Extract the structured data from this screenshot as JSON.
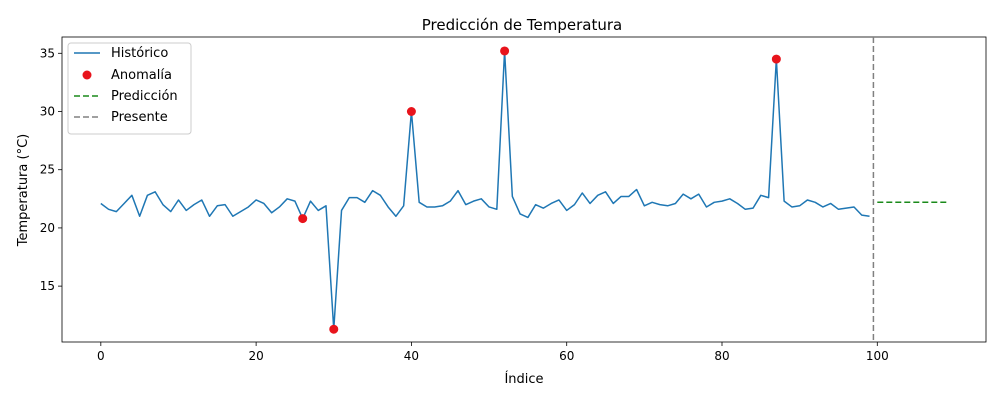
{
  "chart_data": {
    "type": "line",
    "title": "Predicción de Temperatura",
    "xlabel": "Índice",
    "ylabel": "Temperatura (°C)",
    "xlim": [
      -5,
      114
    ],
    "ylim": [
      10.2,
      36.4
    ],
    "xticks": [
      0,
      20,
      40,
      60,
      80,
      100
    ],
    "yticks": [
      15,
      20,
      25,
      30,
      35
    ],
    "grid": false,
    "legend_position": "top-left",
    "series": [
      {
        "name": "Histórico",
        "kind": "line",
        "color": "#1f77b4",
        "x": [
          0,
          1,
          2,
          3,
          4,
          5,
          6,
          7,
          8,
          9,
          10,
          11,
          12,
          13,
          14,
          15,
          16,
          17,
          18,
          19,
          20,
          21,
          22,
          23,
          24,
          25,
          26,
          27,
          28,
          29,
          30,
          31,
          32,
          33,
          34,
          35,
          36,
          37,
          38,
          39,
          40,
          41,
          42,
          43,
          44,
          45,
          46,
          47,
          48,
          49,
          50,
          51,
          52,
          53,
          54,
          55,
          56,
          57,
          58,
          59,
          60,
          61,
          62,
          63,
          64,
          65,
          66,
          67,
          68,
          69,
          70,
          71,
          72,
          73,
          74,
          75,
          76,
          77,
          78,
          79,
          80,
          81,
          82,
          83,
          84,
          85,
          86,
          87,
          88,
          89,
          90,
          91,
          92,
          93,
          94,
          95,
          96,
          97,
          98,
          99
        ],
        "y": [
          22.1,
          21.6,
          21.4,
          22.1,
          22.8,
          21.0,
          22.8,
          23.1,
          22.0,
          21.4,
          22.4,
          21.5,
          22.0,
          22.4,
          21.0,
          21.9,
          22.0,
          21.0,
          21.4,
          21.8,
          22.4,
          22.1,
          21.3,
          21.8,
          22.5,
          22.3,
          20.8,
          22.3,
          21.5,
          21.9,
          11.3,
          21.5,
          22.6,
          22.6,
          22.2,
          23.2,
          22.8,
          21.8,
          21.0,
          21.9,
          30.0,
          22.2,
          21.8,
          21.8,
          21.9,
          22.3,
          23.2,
          22.0,
          22.3,
          22.5,
          21.8,
          21.6,
          35.2,
          22.7,
          21.2,
          20.9,
          22.0,
          21.7,
          22.1,
          22.4,
          21.5,
          22.0,
          23.0,
          22.1,
          22.8,
          23.1,
          22.1,
          22.7,
          22.7,
          23.3,
          21.9,
          22.2,
          22.0,
          21.9,
          22.1,
          22.9,
          22.5,
          22.9,
          21.8,
          22.2,
          22.3,
          22.5,
          22.1,
          21.6,
          21.7,
          22.8,
          22.6,
          34.5,
          22.3,
          21.8,
          21.9,
          22.4,
          22.2,
          21.8,
          22.1,
          21.6,
          21.7,
          21.8,
          21.1,
          21.0
        ]
      },
      {
        "name": "Anomalía",
        "kind": "scatter",
        "color": "#e8141c",
        "x": [
          26,
          30,
          40,
          52,
          87
        ],
        "y": [
          20.8,
          11.3,
          30.0,
          35.2,
          34.5
        ]
      },
      {
        "name": "Predicción",
        "kind": "dashed-line",
        "color": "#1a8a1a",
        "x": [
          100,
          109
        ],
        "y": [
          22.2,
          22.2
        ]
      },
      {
        "name": "Presente",
        "kind": "vline",
        "color": "#808080",
        "x": 99.5
      }
    ]
  }
}
